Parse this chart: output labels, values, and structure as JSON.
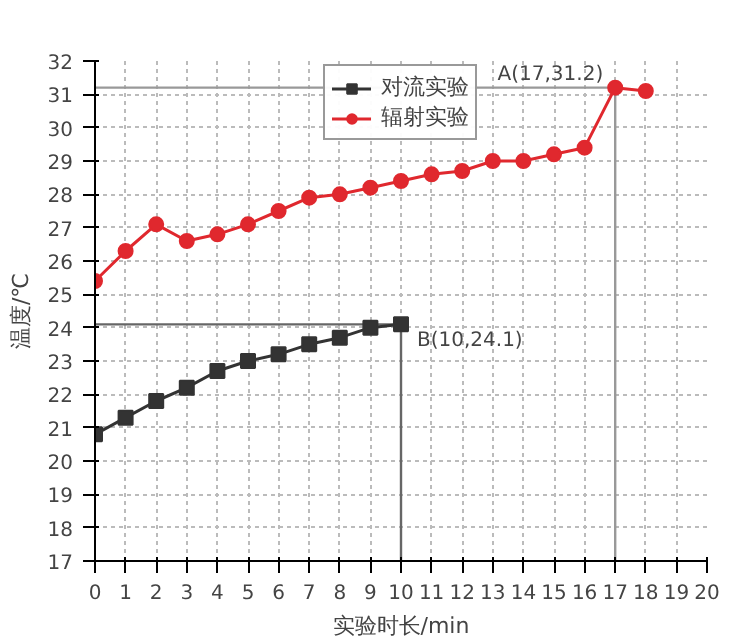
{
  "chart_data": {
    "type": "line",
    "xlabel": "实验时长/min",
    "ylabel": "温度/℃",
    "x": [
      0,
      1,
      2,
      3,
      4,
      5,
      6,
      7,
      8,
      9,
      10,
      11,
      12,
      13,
      14,
      15,
      16,
      17,
      18
    ],
    "series": [
      {
        "name": "对流实验",
        "color": "#333333",
        "marker": "square",
        "x": [
          0,
          1,
          2,
          3,
          4,
          5,
          6,
          7,
          8,
          9,
          10
        ],
        "values": [
          20.8,
          21.3,
          21.8,
          22.2,
          22.7,
          23.0,
          23.2,
          23.5,
          23.7,
          24.0,
          24.1
        ]
      },
      {
        "name": "辐射实验",
        "color": "#e0282e",
        "marker": "circle",
        "values": [
          25.4,
          26.3,
          27.1,
          26.6,
          26.8,
          27.1,
          27.5,
          27.9,
          28.0,
          28.2,
          28.4,
          28.6,
          28.7,
          29.0,
          29.0,
          29.2,
          29.4,
          31.2,
          31.1
        ]
      }
    ],
    "xlim": [
      0,
      20
    ],
    "ylim": [
      17,
      32
    ],
    "xticks": [
      0,
      1,
      2,
      3,
      4,
      5,
      6,
      7,
      8,
      9,
      10,
      11,
      12,
      13,
      14,
      15,
      16,
      17,
      18,
      19,
      20
    ],
    "yticks": [
      17,
      18,
      19,
      20,
      21,
      22,
      23,
      24,
      25,
      26,
      27,
      28,
      29,
      30,
      31,
      32
    ],
    "grid": true,
    "legend": "top",
    "ref_lines": [
      {
        "axis": "x",
        "value": 17,
        "color": "#999999"
      },
      {
        "axis": "y",
        "value": 31.2,
        "color": "#999999"
      },
      {
        "axis": "x",
        "value": 10,
        "color": "#666666"
      },
      {
        "axis": "y",
        "value": 24.1,
        "color": "#666666"
      }
    ],
    "annotations": [
      {
        "text": "A(17,31.2)",
        "x": 17,
        "y": 31.2
      },
      {
        "text": "B(10,24.1)",
        "x": 10,
        "y": 24.1
      }
    ]
  }
}
